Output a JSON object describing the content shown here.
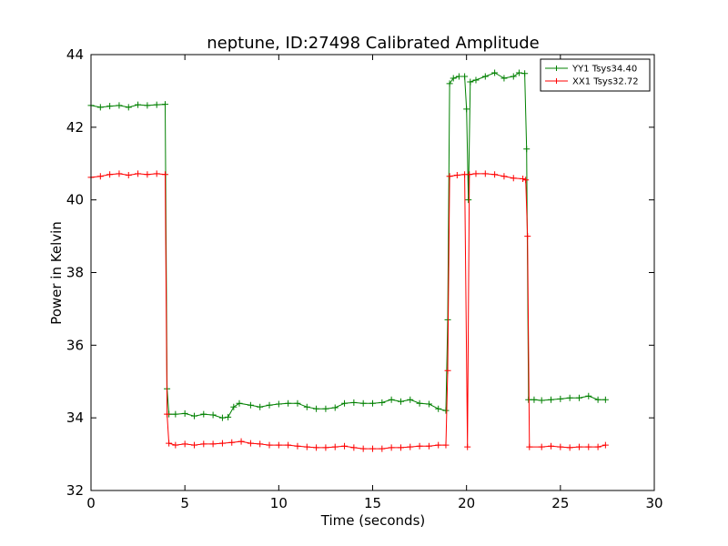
{
  "chart_data": {
    "type": "line",
    "title": "neptune, ID:27498 Calibrated Amplitude",
    "xlabel": "Time (seconds)",
    "ylabel": "Power in Kelvin",
    "xlim": [
      0,
      30
    ],
    "ylim": [
      32,
      44
    ],
    "xticks": [
      0,
      5,
      10,
      15,
      20,
      25,
      30
    ],
    "yticks": [
      32,
      34,
      36,
      38,
      40,
      42,
      44
    ],
    "grid": false,
    "legend": "top-right",
    "marker": "+",
    "series": [
      {
        "name": "YY1 Tsys34.40",
        "color": "#008000",
        "points": [
          [
            0.0,
            42.6
          ],
          [
            0.5,
            42.55
          ],
          [
            1.0,
            42.58
          ],
          [
            1.5,
            42.6
          ],
          [
            2.0,
            42.55
          ],
          [
            2.5,
            42.62
          ],
          [
            3.0,
            42.6
          ],
          [
            3.5,
            42.62
          ],
          [
            3.95,
            42.63
          ],
          [
            4.05,
            34.8
          ],
          [
            4.15,
            34.1
          ],
          [
            4.5,
            34.1
          ],
          [
            5.0,
            34.12
          ],
          [
            5.5,
            34.05
          ],
          [
            6.0,
            34.1
          ],
          [
            6.5,
            34.08
          ],
          [
            7.0,
            34.0
          ],
          [
            7.3,
            34.02
          ],
          [
            7.6,
            34.3
          ],
          [
            7.9,
            34.4
          ],
          [
            8.5,
            34.35
          ],
          [
            9.0,
            34.3
          ],
          [
            9.5,
            34.35
          ],
          [
            10.0,
            34.38
          ],
          [
            10.5,
            34.4
          ],
          [
            11.0,
            34.4
          ],
          [
            11.5,
            34.3
          ],
          [
            12.0,
            34.25
          ],
          [
            12.5,
            34.25
          ],
          [
            13.0,
            34.28
          ],
          [
            13.5,
            34.4
          ],
          [
            14.0,
            34.42
          ],
          [
            14.5,
            34.4
          ],
          [
            15.0,
            34.4
          ],
          [
            15.5,
            34.42
          ],
          [
            16.0,
            34.5
          ],
          [
            16.5,
            34.45
          ],
          [
            17.0,
            34.5
          ],
          [
            17.5,
            34.4
          ],
          [
            18.0,
            34.38
          ],
          [
            18.5,
            34.25
          ],
          [
            18.9,
            34.2
          ],
          [
            19.0,
            36.7
          ],
          [
            19.1,
            43.2
          ],
          [
            19.3,
            43.35
          ],
          [
            19.6,
            43.4
          ],
          [
            19.9,
            43.4
          ],
          [
            20.0,
            42.5
          ],
          [
            20.1,
            40.0
          ],
          [
            20.2,
            43.25
          ],
          [
            20.5,
            43.3
          ],
          [
            21.0,
            43.4
          ],
          [
            21.5,
            43.5
          ],
          [
            22.0,
            43.35
          ],
          [
            22.5,
            43.4
          ],
          [
            22.8,
            43.5
          ],
          [
            23.1,
            43.48
          ],
          [
            23.2,
            41.4
          ],
          [
            23.3,
            34.5
          ],
          [
            23.6,
            34.5
          ],
          [
            24.0,
            34.48
          ],
          [
            24.5,
            34.5
          ],
          [
            25.0,
            34.52
          ],
          [
            25.5,
            34.55
          ],
          [
            26.0,
            34.55
          ],
          [
            26.5,
            34.6
          ],
          [
            27.0,
            34.5
          ],
          [
            27.4,
            34.5
          ]
        ]
      },
      {
        "name": "XX1 Tsys32.72",
        "color": "#ff0000",
        "points": [
          [
            0.0,
            40.62
          ],
          [
            0.5,
            40.65
          ],
          [
            1.0,
            40.7
          ],
          [
            1.5,
            40.72
          ],
          [
            2.0,
            40.68
          ],
          [
            2.5,
            40.72
          ],
          [
            3.0,
            40.7
          ],
          [
            3.5,
            40.72
          ],
          [
            3.95,
            40.7
          ],
          [
            4.05,
            34.1
          ],
          [
            4.15,
            33.3
          ],
          [
            4.5,
            33.25
          ],
          [
            5.0,
            33.28
          ],
          [
            5.5,
            33.25
          ],
          [
            6.0,
            33.28
          ],
          [
            6.5,
            33.28
          ],
          [
            7.0,
            33.3
          ],
          [
            7.5,
            33.32
          ],
          [
            8.0,
            33.35
          ],
          [
            8.5,
            33.3
          ],
          [
            9.0,
            33.28
          ],
          [
            9.5,
            33.25
          ],
          [
            10.0,
            33.25
          ],
          [
            10.5,
            33.25
          ],
          [
            11.0,
            33.22
          ],
          [
            11.5,
            33.2
          ],
          [
            12.0,
            33.18
          ],
          [
            12.5,
            33.18
          ],
          [
            13.0,
            33.2
          ],
          [
            13.5,
            33.22
          ],
          [
            14.0,
            33.18
          ],
          [
            14.5,
            33.15
          ],
          [
            15.0,
            33.15
          ],
          [
            15.5,
            33.15
          ],
          [
            16.0,
            33.18
          ],
          [
            16.5,
            33.18
          ],
          [
            17.0,
            33.2
          ],
          [
            17.5,
            33.22
          ],
          [
            18.0,
            33.22
          ],
          [
            18.5,
            33.25
          ],
          [
            18.9,
            33.25
          ],
          [
            19.0,
            35.3
          ],
          [
            19.1,
            40.65
          ],
          [
            19.5,
            40.68
          ],
          [
            19.9,
            40.7
          ],
          [
            20.05,
            33.2
          ],
          [
            20.15,
            40.7
          ],
          [
            20.5,
            40.72
          ],
          [
            21.0,
            40.72
          ],
          [
            21.5,
            40.7
          ],
          [
            22.0,
            40.65
          ],
          [
            22.5,
            40.6
          ],
          [
            23.0,
            40.58
          ],
          [
            23.15,
            40.55
          ],
          [
            23.25,
            39.0
          ],
          [
            23.35,
            33.2
          ],
          [
            24.0,
            33.2
          ],
          [
            24.5,
            33.22
          ],
          [
            25.0,
            33.2
          ],
          [
            25.5,
            33.18
          ],
          [
            26.0,
            33.2
          ],
          [
            26.5,
            33.2
          ],
          [
            27.0,
            33.2
          ],
          [
            27.4,
            33.25
          ]
        ]
      }
    ]
  }
}
